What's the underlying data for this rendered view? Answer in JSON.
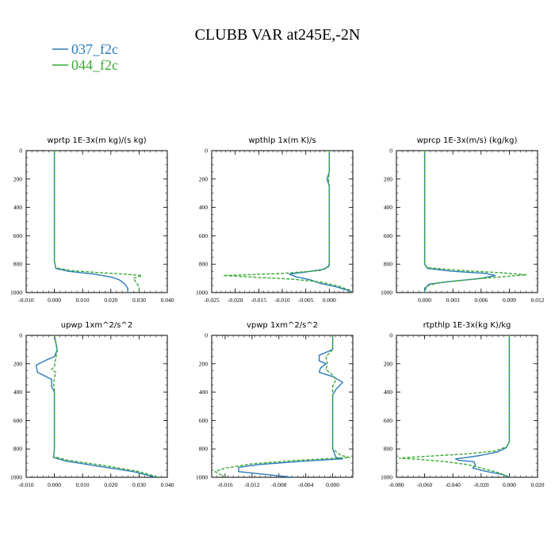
{
  "figure": {
    "title": "CLUBB VAR at245E,-2N"
  },
  "legend": {
    "entries": [
      {
        "label": "037_f2c",
        "color": "#2a7ab8",
        "dash": "solid"
      },
      {
        "label": "044_f2c",
        "color": "#3aaa35",
        "dash": "dashed"
      }
    ]
  },
  "chart_data": [
    {
      "type": "line",
      "title": "wprtp  1E-3x(m kg)/(s kg)",
      "xlim": [
        -0.01,
        0.04
      ],
      "ylim": [
        0,
        1000
      ],
      "y_inverted": true,
      "xticks": [
        "-0.010",
        "0.000",
        "0.010",
        "0.020",
        "0.030",
        "0.040"
      ],
      "xtick_values": [
        -0.01,
        0.0,
        0.01,
        0.02,
        0.03,
        0.04
      ],
      "yticks": [
        "0",
        "200",
        "400",
        "600",
        "800",
        "1000"
      ],
      "ytick_values": [
        0,
        200,
        400,
        600,
        800,
        1000
      ],
      "series": [
        {
          "name": "037_f2c",
          "points": [
            [
              0.0,
              0
            ],
            [
              0.0,
              200
            ],
            [
              0.0,
              400
            ],
            [
              0.0,
              600
            ],
            [
              0.0,
              780
            ],
            [
              0.0005,
              830
            ],
            [
              0.005,
              850
            ],
            [
              0.014,
              870
            ],
            [
              0.02,
              890
            ],
            [
              0.023,
              910
            ],
            [
              0.025,
              940
            ],
            [
              0.026,
              970
            ],
            [
              0.026,
              1000
            ]
          ]
        },
        {
          "name": "044_f2c",
          "points": [
            [
              0.0,
              0
            ],
            [
              0.0,
              200
            ],
            [
              0.0,
              400
            ],
            [
              0.0,
              600
            ],
            [
              0.0,
              780
            ],
            [
              0.0005,
              825
            ],
            [
              0.006,
              845
            ],
            [
              0.016,
              860
            ],
            [
              0.025,
              870
            ],
            [
              0.031,
              880
            ],
            [
              0.028,
              900
            ],
            [
              0.029,
              930
            ],
            [
              0.03,
              960
            ],
            [
              0.03,
              1000
            ]
          ]
        }
      ]
    },
    {
      "type": "line",
      "title": "wpthlp  1x(m K)/s",
      "xlim": [
        -0.025,
        0.005
      ],
      "ylim": [
        0,
        1000
      ],
      "y_inverted": true,
      "xticks": [
        "-0.025",
        "-0.020",
        "-0.015",
        "-0.010",
        "-0.005",
        "0.000"
      ],
      "xtick_values": [
        -0.025,
        -0.02,
        -0.015,
        -0.01,
        -0.005,
        0.0
      ],
      "yticks": [
        "0",
        "200",
        "400",
        "600",
        "800",
        "1000"
      ],
      "ytick_values": [
        0,
        200,
        400,
        600,
        800,
        1000
      ],
      "series": [
        {
          "name": "037_f2c",
          "points": [
            [
              0.0,
              0
            ],
            [
              0.0,
              150
            ],
            [
              -0.0005,
              200
            ],
            [
              0.0,
              250
            ],
            [
              0.0,
              400
            ],
            [
              0.0,
              600
            ],
            [
              0.0,
              780
            ],
            [
              0.0,
              810
            ],
            [
              -0.001,
              835
            ],
            [
              -0.005,
              855
            ],
            [
              -0.0085,
              870
            ],
            [
              -0.007,
              890
            ],
            [
              -0.004,
              910
            ],
            [
              -0.002,
              935
            ],
            [
              0.0015,
              960
            ],
            [
              0.004,
              985
            ],
            [
              0.005,
              1000
            ]
          ]
        },
        {
          "name": "044_f2c",
          "points": [
            [
              0.0,
              0
            ],
            [
              0.0,
              150
            ],
            [
              -0.0002,
              200
            ],
            [
              0.0,
              250
            ],
            [
              0.0,
              400
            ],
            [
              0.0,
              600
            ],
            [
              0.0,
              780
            ],
            [
              -0.0002,
              820
            ],
            [
              -0.002,
              845
            ],
            [
              -0.01,
              865
            ],
            [
              -0.0225,
              880
            ],
            [
              -0.014,
              895
            ],
            [
              -0.008,
              905
            ],
            [
              -0.002,
              925
            ],
            [
              0.002,
              955
            ],
            [
              0.0045,
              985
            ],
            [
              0.005,
              1000
            ]
          ]
        }
      ]
    },
    {
      "type": "line",
      "title": "wprcp  1E-3x(m/s) (kg/kg)",
      "xlim": [
        -0.003,
        0.012
      ],
      "ylim": [
        0,
        1000
      ],
      "y_inverted": true,
      "xticks": [
        "0.000",
        "0.003",
        "0.006",
        "0.009",
        "0.012"
      ],
      "xtick_values": [
        0.0,
        0.003,
        0.006,
        0.009,
        0.012
      ],
      "yticks": [
        "0",
        "200",
        "400",
        "600",
        "800",
        "1000"
      ],
      "ytick_values": [
        0,
        200,
        400,
        600,
        800,
        1000
      ],
      "series": [
        {
          "name": "037_f2c",
          "points": [
            [
              0.0,
              0
            ],
            [
              0.0,
              200
            ],
            [
              0.0,
              400
            ],
            [
              0.0,
              600
            ],
            [
              0.0,
              800
            ],
            [
              0.0003,
              830
            ],
            [
              0.003,
              850
            ],
            [
              0.0065,
              865
            ],
            [
              0.0075,
              880
            ],
            [
              0.006,
              900
            ],
            [
              0.003,
              920
            ],
            [
              0.0005,
              940
            ],
            [
              0.0,
              970
            ],
            [
              0.0,
              1000
            ]
          ]
        },
        {
          "name": "044_f2c",
          "points": [
            [
              0.0,
              0
            ],
            [
              0.0,
              200
            ],
            [
              0.0,
              400
            ],
            [
              0.0,
              600
            ],
            [
              0.0,
              800
            ],
            [
              0.0003,
              825
            ],
            [
              0.004,
              845
            ],
            [
              0.008,
              860
            ],
            [
              0.0108,
              875
            ],
            [
              0.008,
              890
            ],
            [
              0.0045,
              910
            ],
            [
              0.0015,
              930
            ],
            [
              0.0002,
              955
            ],
            [
              0.0,
              1000
            ]
          ]
        }
      ]
    },
    {
      "type": "line",
      "title": "upwp  1xm^2/s^2",
      "xlim": [
        -0.01,
        0.04
      ],
      "ylim": [
        0,
        1000
      ],
      "y_inverted": true,
      "xticks": [
        "-0.010",
        "0.000",
        "0.010",
        "0.020",
        "0.030",
        "0.040"
      ],
      "xtick_values": [
        -0.01,
        0.0,
        0.01,
        0.02,
        0.03,
        0.04
      ],
      "yticks": [
        "0",
        "200",
        "400",
        "600",
        "800",
        "1000"
      ],
      "ytick_values": [
        0,
        200,
        400,
        600,
        800,
        1000
      ],
      "series": [
        {
          "name": "037_f2c",
          "points": [
            [
              0.0,
              0
            ],
            [
              0.001,
              100
            ],
            [
              0.0,
              150
            ],
            [
              -0.003,
              175
            ],
            [
              -0.0065,
              210
            ],
            [
              -0.006,
              260
            ],
            [
              -0.003,
              290
            ],
            [
              -0.001,
              310
            ],
            [
              -0.001,
              360
            ],
            [
              0.0,
              400
            ],
            [
              0.0,
              600
            ],
            [
              0.0,
              800
            ],
            [
              -0.0003,
              860
            ],
            [
              0.004,
              885
            ],
            [
              0.015,
              920
            ],
            [
              0.028,
              960
            ],
            [
              0.036,
              1000
            ]
          ]
        },
        {
          "name": "044_f2c",
          "points": [
            [
              0.0,
              0
            ],
            [
              0.001,
              110
            ],
            [
              0.0005,
              160
            ],
            [
              0.0,
              220
            ],
            [
              -0.001,
              240
            ],
            [
              0.0005,
              260
            ],
            [
              0.0,
              300
            ],
            [
              -0.0003,
              340
            ],
            [
              0.0,
              380
            ],
            [
              0.0,
              400
            ],
            [
              0.0,
              600
            ],
            [
              0.0,
              800
            ],
            [
              -0.0003,
              855
            ],
            [
              0.005,
              880
            ],
            [
              0.017,
              915
            ],
            [
              0.03,
              960
            ],
            [
              0.037,
              1000
            ]
          ]
        }
      ]
    },
    {
      "type": "line",
      "title": "vpwp  1xm^2/s^2",
      "xlim": [
        -0.018,
        0.003
      ],
      "ylim": [
        0,
        1000
      ],
      "y_inverted": true,
      "xticks": [
        "-0.016",
        "-0.012",
        "-0.008",
        "-0.004",
        "0.000"
      ],
      "xtick_values": [
        -0.016,
        -0.012,
        -0.008,
        -0.004,
        0.0
      ],
      "yticks": [
        "0",
        "200",
        "400",
        "600",
        "800",
        "1000"
      ],
      "ytick_values": [
        0,
        200,
        400,
        600,
        800,
        1000
      ],
      "series": [
        {
          "name": "037_f2c",
          "points": [
            [
              0.0,
              0
            ],
            [
              0.0,
              100
            ],
            [
              -0.002,
              140
            ],
            [
              -0.002,
              180
            ],
            [
              -0.001,
              200
            ],
            [
              -0.0018,
              230
            ],
            [
              -0.002,
              260
            ],
            [
              0.0,
              290
            ],
            [
              0.0015,
              330
            ],
            [
              0.0005,
              380
            ],
            [
              0.0,
              420
            ],
            [
              0.0,
              600
            ],
            [
              0.0,
              800
            ],
            [
              0.0005,
              860
            ],
            [
              0.0015,
              870
            ],
            [
              -0.004,
              885
            ],
            [
              -0.011,
              910
            ],
            [
              -0.014,
              930
            ],
            [
              -0.014,
              960
            ],
            [
              -0.008,
              990
            ],
            [
              -0.006,
              1000
            ]
          ]
        },
        {
          "name": "044_f2c",
          "points": [
            [
              0.0,
              0
            ],
            [
              0.0,
              100
            ],
            [
              -0.001,
              150
            ],
            [
              -0.0008,
              200
            ],
            [
              -0.001,
              240
            ],
            [
              0.0,
              280
            ],
            [
              0.0005,
              310
            ],
            [
              0.0,
              360
            ],
            [
              0.0,
              420
            ],
            [
              0.0,
              600
            ],
            [
              0.0,
              800
            ],
            [
              0.0012,
              845
            ],
            [
              0.0025,
              860
            ],
            [
              -0.005,
              880
            ],
            [
              -0.012,
              905
            ],
            [
              -0.016,
              935
            ],
            [
              -0.0175,
              960
            ],
            [
              -0.0165,
              985
            ],
            [
              -0.016,
              1000
            ]
          ]
        }
      ]
    },
    {
      "type": "line",
      "title": "rtpthlp  1E-3x(kg K)/kg",
      "xlim": [
        -0.08,
        0.02
      ],
      "ylim": [
        0,
        1000
      ],
      "y_inverted": true,
      "xticks": [
        "-0.080",
        "-0.060",
        "-0.040",
        "-0.020",
        "0.000",
        "0.020"
      ],
      "xtick_values": [
        -0.08,
        -0.06,
        -0.04,
        -0.02,
        0.0,
        0.02
      ],
      "yticks": [
        "0",
        "200",
        "400",
        "600",
        "800",
        "1000"
      ],
      "ytick_values": [
        0,
        200,
        400,
        600,
        800,
        1000
      ],
      "series": [
        {
          "name": "037_f2c",
          "points": [
            [
              0.0,
              0
            ],
            [
              0.0,
              200
            ],
            [
              0.0,
              400
            ],
            [
              0.0,
              600
            ],
            [
              0.0,
              750
            ],
            [
              -0.002,
              790
            ],
            [
              -0.008,
              820
            ],
            [
              -0.02,
              845
            ],
            [
              -0.03,
              860
            ],
            [
              -0.038,
              870
            ],
            [
              -0.036,
              880
            ],
            [
              -0.025,
              890
            ],
            [
              -0.024,
              915
            ],
            [
              -0.026,
              935
            ],
            [
              -0.018,
              955
            ],
            [
              -0.005,
              980
            ],
            [
              0.0,
              1000
            ]
          ]
        },
        {
          "name": "044_f2c",
          "points": [
            [
              0.0,
              0
            ],
            [
              0.0,
              200
            ],
            [
              0.0,
              400
            ],
            [
              0.0,
              600
            ],
            [
              0.0,
              750
            ],
            [
              -0.002,
              785
            ],
            [
              -0.01,
              815
            ],
            [
              -0.03,
              835
            ],
            [
              -0.055,
              850
            ],
            [
              -0.072,
              860
            ],
            [
              -0.078,
              865
            ],
            [
              -0.062,
              875
            ],
            [
              -0.045,
              890
            ],
            [
              -0.03,
              910
            ],
            [
              -0.02,
              935
            ],
            [
              -0.01,
              960
            ],
            [
              -0.003,
              985
            ],
            [
              0.0,
              1000
            ]
          ]
        }
      ]
    }
  ]
}
